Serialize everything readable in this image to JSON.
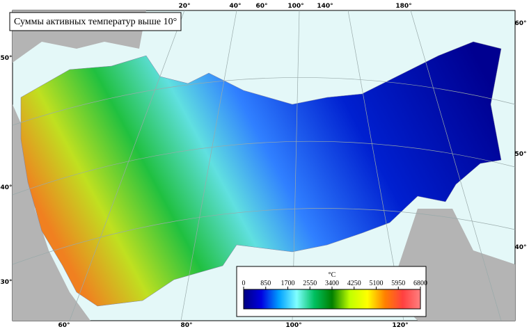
{
  "title": "Суммы активных температур выше 10°",
  "graticule": {
    "top": [
      "20°",
      "40°",
      "60°",
      "100°",
      "140°",
      "180°"
    ],
    "right": [
      "60°",
      "50°",
      "40°"
    ],
    "left": [
      "50°",
      "40°",
      "30°"
    ],
    "bottom": [
      "60°",
      "80°",
      "100°",
      "120°"
    ]
  },
  "legend": {
    "unit": "°C",
    "ticks": [
      0,
      850,
      1700,
      2550,
      3400,
      4250,
      5100,
      5950,
      6800
    ],
    "range": [
      0,
      6800
    ],
    "colors": [
      "#000080",
      "#0000e0",
      "#00a0ff",
      "#80ffff",
      "#00c060",
      "#008000",
      "#c0ff00",
      "#ffff00",
      "#ff8000",
      "#ff4040",
      "#ff8080"
    ]
  }
}
